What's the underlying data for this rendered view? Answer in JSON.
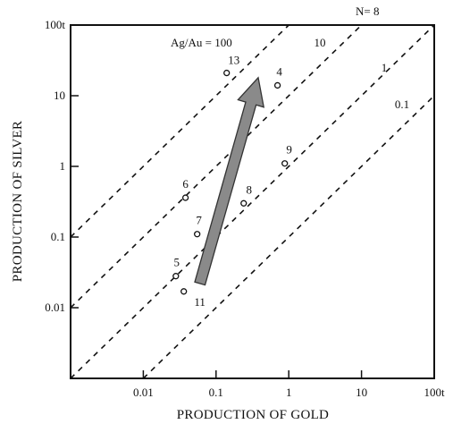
{
  "chart_data": {
    "type": "scatter",
    "title": "",
    "n_label": "N= 8",
    "xlabel": "PRODUCTION OF GOLD",
    "ylabel": "PRODUCTION OF SILVER",
    "x_scale": "log",
    "y_scale": "log",
    "xlim": [
      0.001,
      100
    ],
    "ylim": [
      0.001,
      100
    ],
    "x_ticks": [
      {
        "value": 0.01,
        "label": "0.01"
      },
      {
        "value": 0.1,
        "label": "0.1"
      },
      {
        "value": 1,
        "label": "1"
      },
      {
        "value": 10,
        "label": "10"
      },
      {
        "value": 100,
        "label": "100t"
      }
    ],
    "y_ticks": [
      {
        "value": 0.01,
        "label": "0.01"
      },
      {
        "value": 0.1,
        "label": "0.1"
      },
      {
        "value": 1,
        "label": "1"
      },
      {
        "value": 10,
        "label": "10"
      },
      {
        "value": 100,
        "label": "100t"
      }
    ],
    "ratio_lines": [
      {
        "ratio": 100,
        "label": "Ag/Au = 100"
      },
      {
        "ratio": 10,
        "label": "10"
      },
      {
        "ratio": 1,
        "label": "1"
      },
      {
        "ratio": 0.1,
        "label": "0.1"
      }
    ],
    "points": [
      {
        "id": "13",
        "x": 0.14,
        "y": 21
      },
      {
        "id": "4",
        "x": 0.7,
        "y": 14
      },
      {
        "id": "6",
        "x": 0.038,
        "y": 0.36
      },
      {
        "id": "9",
        "x": 0.88,
        "y": 1.1
      },
      {
        "id": "8",
        "x": 0.24,
        "y": 0.3
      },
      {
        "id": "7",
        "x": 0.055,
        "y": 0.11
      },
      {
        "id": "5",
        "x": 0.028,
        "y": 0.028
      },
      {
        "id": "11",
        "x": 0.036,
        "y": 0.017
      }
    ],
    "arrow": {
      "from": [
        0.06,
        0.022
      ],
      "to": [
        0.38,
        18
      ]
    }
  }
}
